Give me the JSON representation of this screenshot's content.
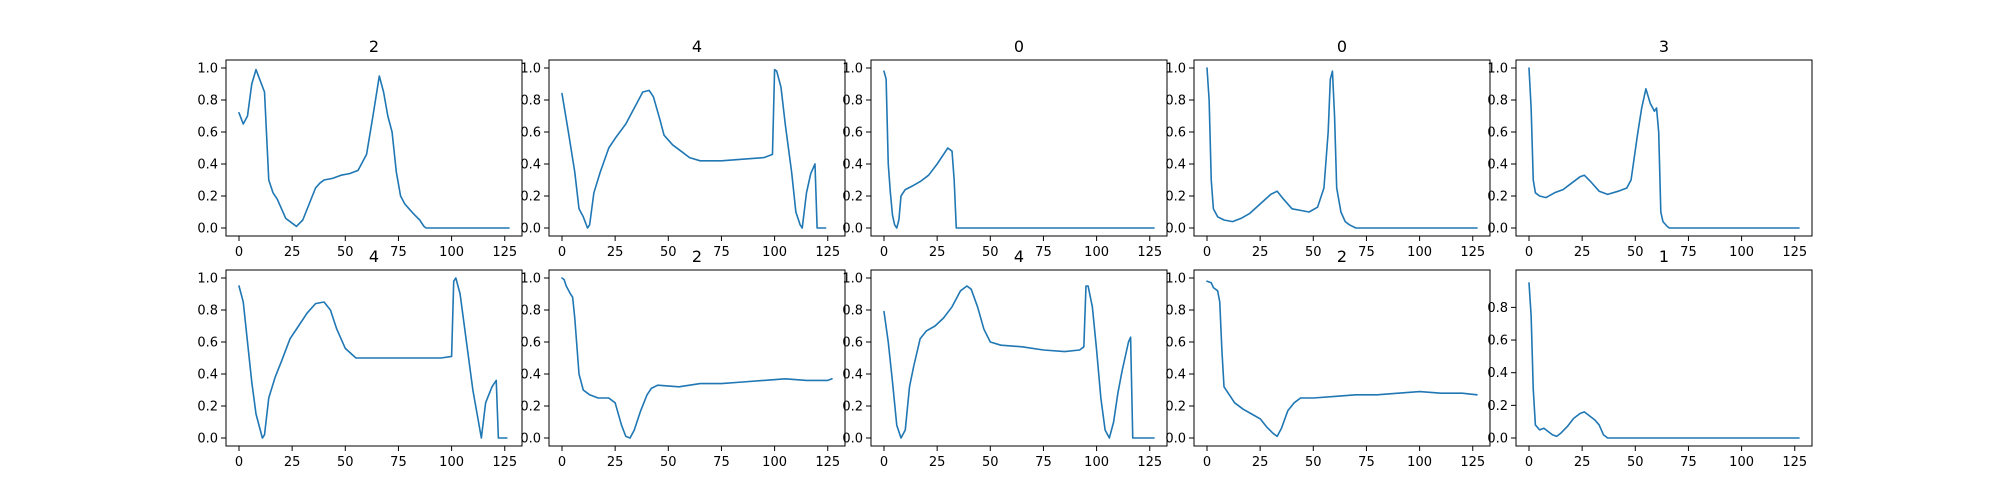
{
  "figure": {
    "background": "#ffffff",
    "line_color": "#1f77b4"
  },
  "chart_data": [
    {
      "type": "line",
      "title": "2",
      "xlim": [
        0,
        127
      ],
      "ylim": [
        0,
        1.0
      ],
      "xticks": [
        0,
        25,
        50,
        75,
        100,
        125
      ],
      "yticks": [
        0.0,
        0.2,
        0.4,
        0.6,
        0.8,
        1.0
      ],
      "points": [
        [
          0,
          0.72
        ],
        [
          2,
          0.65
        ],
        [
          4,
          0.7
        ],
        [
          6,
          0.9
        ],
        [
          8,
          0.99
        ],
        [
          10,
          0.92
        ],
        [
          12,
          0.85
        ],
        [
          14,
          0.3
        ],
        [
          16,
          0.22
        ],
        [
          18,
          0.18
        ],
        [
          20,
          0.12
        ],
        [
          22,
          0.06
        ],
        [
          25,
          0.03
        ],
        [
          27,
          0.01
        ],
        [
          30,
          0.05
        ],
        [
          33,
          0.15
        ],
        [
          36,
          0.25
        ],
        [
          38,
          0.28
        ],
        [
          40,
          0.3
        ],
        [
          44,
          0.31
        ],
        [
          48,
          0.33
        ],
        [
          52,
          0.34
        ],
        [
          56,
          0.36
        ],
        [
          60,
          0.46
        ],
        [
          63,
          0.7
        ],
        [
          66,
          0.95
        ],
        [
          68,
          0.85
        ],
        [
          70,
          0.7
        ],
        [
          72,
          0.6
        ],
        [
          74,
          0.35
        ],
        [
          76,
          0.2
        ],
        [
          78,
          0.15
        ],
        [
          80,
          0.12
        ],
        [
          82,
          0.09
        ],
        [
          85,
          0.05
        ],
        [
          87,
          0.01
        ],
        [
          88,
          0.0
        ],
        [
          127,
          0.0
        ]
      ]
    },
    {
      "type": "line",
      "title": "4",
      "xlim": [
        0,
        127
      ],
      "ylim": [
        0,
        1.0
      ],
      "xticks": [
        0,
        25,
        50,
        75,
        100,
        125
      ],
      "yticks": [
        0.0,
        0.2,
        0.4,
        0.6,
        0.8,
        1.0
      ],
      "points": [
        [
          0,
          0.84
        ],
        [
          3,
          0.6
        ],
        [
          6,
          0.35
        ],
        [
          8,
          0.12
        ],
        [
          10,
          0.07
        ],
        [
          12,
          0.0
        ],
        [
          13,
          0.02
        ],
        [
          15,
          0.22
        ],
        [
          18,
          0.35
        ],
        [
          22,
          0.5
        ],
        [
          25,
          0.56
        ],
        [
          30,
          0.65
        ],
        [
          34,
          0.75
        ],
        [
          38,
          0.85
        ],
        [
          41,
          0.86
        ],
        [
          43,
          0.82
        ],
        [
          46,
          0.68
        ],
        [
          48,
          0.58
        ],
        [
          52,
          0.52
        ],
        [
          56,
          0.48
        ],
        [
          60,
          0.44
        ],
        [
          65,
          0.42
        ],
        [
          75,
          0.42
        ],
        [
          85,
          0.43
        ],
        [
          95,
          0.44
        ],
        [
          99,
          0.46
        ],
        [
          100,
          0.99
        ],
        [
          101,
          0.98
        ],
        [
          103,
          0.88
        ],
        [
          105,
          0.65
        ],
        [
          108,
          0.35
        ],
        [
          110,
          0.1
        ],
        [
          112,
          0.02
        ],
        [
          113,
          0.0
        ],
        [
          115,
          0.22
        ],
        [
          117,
          0.34
        ],
        [
          119,
          0.4
        ],
        [
          120,
          0.0
        ],
        [
          124,
          0.0
        ]
      ]
    },
    {
      "type": "line",
      "title": "0",
      "xlim": [
        0,
        127
      ],
      "ylim": [
        0,
        1.0
      ],
      "xticks": [
        0,
        25,
        50,
        75,
        100,
        125
      ],
      "yticks": [
        0.0,
        0.2,
        0.4,
        0.6,
        0.8,
        1.0
      ],
      "points": [
        [
          0,
          0.98
        ],
        [
          1,
          0.93
        ],
        [
          2,
          0.4
        ],
        [
          3,
          0.22
        ],
        [
          4,
          0.08
        ],
        [
          5,
          0.02
        ],
        [
          6,
          0.0
        ],
        [
          7,
          0.05
        ],
        [
          8,
          0.2
        ],
        [
          10,
          0.24
        ],
        [
          13,
          0.26
        ],
        [
          17,
          0.29
        ],
        [
          21,
          0.33
        ],
        [
          25,
          0.4
        ],
        [
          28,
          0.46
        ],
        [
          30,
          0.5
        ],
        [
          32,
          0.48
        ],
        [
          33,
          0.3
        ],
        [
          34,
          0.0
        ],
        [
          127,
          0.0
        ]
      ]
    },
    {
      "type": "line",
      "title": "0",
      "xlim": [
        0,
        127
      ],
      "ylim": [
        0,
        1.0
      ],
      "xticks": [
        0,
        25,
        50,
        75,
        100,
        125
      ],
      "yticks": [
        0.0,
        0.2,
        0.4,
        0.6,
        0.8,
        1.0
      ],
      "points": [
        [
          0,
          1.0
        ],
        [
          1,
          0.8
        ],
        [
          2,
          0.3
        ],
        [
          3,
          0.12
        ],
        [
          5,
          0.07
        ],
        [
          8,
          0.05
        ],
        [
          12,
          0.04
        ],
        [
          16,
          0.06
        ],
        [
          20,
          0.09
        ],
        [
          25,
          0.15
        ],
        [
          30,
          0.21
        ],
        [
          33,
          0.23
        ],
        [
          36,
          0.18
        ],
        [
          40,
          0.12
        ],
        [
          44,
          0.11
        ],
        [
          48,
          0.1
        ],
        [
          52,
          0.13
        ],
        [
          55,
          0.25
        ],
        [
          57,
          0.6
        ],
        [
          58,
          0.93
        ],
        [
          59,
          0.98
        ],
        [
          60,
          0.7
        ],
        [
          61,
          0.25
        ],
        [
          63,
          0.1
        ],
        [
          65,
          0.04
        ],
        [
          67,
          0.02
        ],
        [
          70,
          0.0
        ],
        [
          127,
          0.0
        ]
      ]
    },
    {
      "type": "line",
      "title": "3",
      "xlim": [
        0,
        127
      ],
      "ylim": [
        0,
        1.0
      ],
      "xticks": [
        0,
        25,
        50,
        75,
        100,
        125
      ],
      "yticks": [
        0.0,
        0.2,
        0.4,
        0.6,
        0.8,
        1.0
      ],
      "points": [
        [
          0,
          1.0
        ],
        [
          1,
          0.75
        ],
        [
          2,
          0.3
        ],
        [
          3,
          0.22
        ],
        [
          5,
          0.2
        ],
        [
          8,
          0.19
        ],
        [
          12,
          0.22
        ],
        [
          16,
          0.24
        ],
        [
          20,
          0.28
        ],
        [
          24,
          0.32
        ],
        [
          26,
          0.33
        ],
        [
          29,
          0.29
        ],
        [
          33,
          0.23
        ],
        [
          37,
          0.21
        ],
        [
          42,
          0.23
        ],
        [
          46,
          0.25
        ],
        [
          48,
          0.3
        ],
        [
          51,
          0.58
        ],
        [
          53,
          0.75
        ],
        [
          55,
          0.87
        ],
        [
          57,
          0.78
        ],
        [
          59,
          0.73
        ],
        [
          60,
          0.75
        ],
        [
          61,
          0.6
        ],
        [
          62,
          0.1
        ],
        [
          63,
          0.04
        ],
        [
          65,
          0.01
        ],
        [
          66,
          0.0
        ],
        [
          127,
          0.0
        ]
      ]
    },
    {
      "type": "line",
      "title": "4",
      "xlim": [
        0,
        127
      ],
      "ylim": [
        0,
        1.0
      ],
      "xticks": [
        0,
        25,
        50,
        75,
        100,
        125
      ],
      "yticks": [
        0.0,
        0.2,
        0.4,
        0.6,
        0.8,
        1.0
      ],
      "points": [
        [
          0,
          0.95
        ],
        [
          2,
          0.85
        ],
        [
          4,
          0.6
        ],
        [
          6,
          0.35
        ],
        [
          8,
          0.15
        ],
        [
          10,
          0.05
        ],
        [
          11,
          0.0
        ],
        [
          12,
          0.02
        ],
        [
          14,
          0.25
        ],
        [
          17,
          0.38
        ],
        [
          20,
          0.48
        ],
        [
          24,
          0.62
        ],
        [
          28,
          0.7
        ],
        [
          32,
          0.78
        ],
        [
          36,
          0.84
        ],
        [
          40,
          0.85
        ],
        [
          43,
          0.8
        ],
        [
          46,
          0.68
        ],
        [
          50,
          0.56
        ],
        [
          55,
          0.5
        ],
        [
          65,
          0.5
        ],
        [
          75,
          0.5
        ],
        [
          85,
          0.5
        ],
        [
          95,
          0.5
        ],
        [
          100,
          0.51
        ],
        [
          101,
          0.98
        ],
        [
          102,
          1.0
        ],
        [
          104,
          0.9
        ],
        [
          107,
          0.6
        ],
        [
          110,
          0.3
        ],
        [
          112,
          0.15
        ],
        [
          114,
          0.0
        ],
        [
          116,
          0.22
        ],
        [
          119,
          0.32
        ],
        [
          121,
          0.36
        ],
        [
          122,
          0.0
        ],
        [
          126,
          0.0
        ]
      ]
    },
    {
      "type": "line",
      "title": "2",
      "xlim": [
        0,
        127
      ],
      "ylim": [
        0,
        1.0
      ],
      "xticks": [
        0,
        25,
        50,
        75,
        100,
        125
      ],
      "yticks": [
        0.0,
        0.2,
        0.4,
        0.6,
        0.8,
        1.0
      ],
      "points": [
        [
          0,
          1.0
        ],
        [
          1,
          0.99
        ],
        [
          2,
          0.95
        ],
        [
          4,
          0.9
        ],
        [
          5,
          0.88
        ],
        [
          6,
          0.75
        ],
        [
          8,
          0.4
        ],
        [
          10,
          0.3
        ],
        [
          13,
          0.27
        ],
        [
          17,
          0.25
        ],
        [
          22,
          0.25
        ],
        [
          25,
          0.22
        ],
        [
          28,
          0.08
        ],
        [
          30,
          0.01
        ],
        [
          32,
          0.0
        ],
        [
          34,
          0.05
        ],
        [
          37,
          0.17
        ],
        [
          40,
          0.27
        ],
        [
          42,
          0.31
        ],
        [
          45,
          0.33
        ],
        [
          55,
          0.32
        ],
        [
          65,
          0.34
        ],
        [
          75,
          0.34
        ],
        [
          85,
          0.35
        ],
        [
          95,
          0.36
        ],
        [
          105,
          0.37
        ],
        [
          115,
          0.36
        ],
        [
          125,
          0.36
        ],
        [
          127,
          0.37
        ]
      ]
    },
    {
      "type": "line",
      "title": "4",
      "xlim": [
        0,
        127
      ],
      "ylim": [
        0,
        1.0
      ],
      "xticks": [
        0,
        25,
        50,
        75,
        100,
        125
      ],
      "yticks": [
        0.0,
        0.2,
        0.4,
        0.6,
        0.8,
        1.0
      ],
      "points": [
        [
          0,
          0.79
        ],
        [
          2,
          0.6
        ],
        [
          4,
          0.35
        ],
        [
          6,
          0.08
        ],
        [
          8,
          0.0
        ],
        [
          10,
          0.05
        ],
        [
          12,
          0.32
        ],
        [
          14,
          0.45
        ],
        [
          17,
          0.62
        ],
        [
          20,
          0.67
        ],
        [
          24,
          0.7
        ],
        [
          28,
          0.75
        ],
        [
          32,
          0.82
        ],
        [
          36,
          0.92
        ],
        [
          39,
          0.95
        ],
        [
          41,
          0.93
        ],
        [
          44,
          0.82
        ],
        [
          47,
          0.68
        ],
        [
          50,
          0.6
        ],
        [
          55,
          0.58
        ],
        [
          65,
          0.57
        ],
        [
          75,
          0.55
        ],
        [
          85,
          0.54
        ],
        [
          92,
          0.55
        ],
        [
          94,
          0.57
        ],
        [
          95,
          0.95
        ],
        [
          96,
          0.95
        ],
        [
          98,
          0.82
        ],
        [
          100,
          0.55
        ],
        [
          102,
          0.25
        ],
        [
          104,
          0.05
        ],
        [
          106,
          0.0
        ],
        [
          108,
          0.1
        ],
        [
          110,
          0.28
        ],
        [
          112,
          0.42
        ],
        [
          115,
          0.6
        ],
        [
          116,
          0.63
        ],
        [
          117,
          0.0
        ],
        [
          125,
          0.0
        ],
        [
          127,
          0.0
        ]
      ]
    },
    {
      "type": "line",
      "title": "2",
      "xlim": [
        0,
        127
      ],
      "ylim": [
        0,
        1.0
      ],
      "xticks": [
        0,
        25,
        50,
        75,
        100,
        125
      ],
      "yticks": [
        0.0,
        0.2,
        0.4,
        0.6,
        0.8,
        1.0
      ],
      "points": [
        [
          0,
          0.98
        ],
        [
          2,
          0.97
        ],
        [
          3,
          0.94
        ],
        [
          5,
          0.92
        ],
        [
          6,
          0.85
        ],
        [
          7,
          0.55
        ],
        [
          8,
          0.32
        ],
        [
          10,
          0.28
        ],
        [
          13,
          0.22
        ],
        [
          17,
          0.18
        ],
        [
          21,
          0.15
        ],
        [
          25,
          0.12
        ],
        [
          28,
          0.07
        ],
        [
          31,
          0.03
        ],
        [
          33,
          0.01
        ],
        [
          35,
          0.06
        ],
        [
          38,
          0.17
        ],
        [
          41,
          0.22
        ],
        [
          44,
          0.25
        ],
        [
          50,
          0.25
        ],
        [
          60,
          0.26
        ],
        [
          70,
          0.27
        ],
        [
          80,
          0.27
        ],
        [
          90,
          0.28
        ],
        [
          100,
          0.29
        ],
        [
          110,
          0.28
        ],
        [
          120,
          0.28
        ],
        [
          127,
          0.27
        ]
      ]
    },
    {
      "type": "line",
      "title": "1",
      "xlim": [
        0,
        127
      ],
      "ylim": [
        0,
        0.98
      ],
      "xticks": [
        0,
        25,
        50,
        75,
        100,
        125
      ],
      "yticks": [
        0.0,
        0.2,
        0.4,
        0.6,
        0.8
      ],
      "points": [
        [
          0,
          0.95
        ],
        [
          1,
          0.75
        ],
        [
          2,
          0.3
        ],
        [
          3,
          0.08
        ],
        [
          5,
          0.05
        ],
        [
          7,
          0.06
        ],
        [
          9,
          0.04
        ],
        [
          11,
          0.02
        ],
        [
          13,
          0.01
        ],
        [
          15,
          0.03
        ],
        [
          18,
          0.07
        ],
        [
          21,
          0.12
        ],
        [
          24,
          0.15
        ],
        [
          26,
          0.16
        ],
        [
          28,
          0.14
        ],
        [
          31,
          0.11
        ],
        [
          33,
          0.08
        ],
        [
          35,
          0.02
        ],
        [
          37,
          0.0
        ],
        [
          127,
          0.0
        ]
      ]
    }
  ]
}
